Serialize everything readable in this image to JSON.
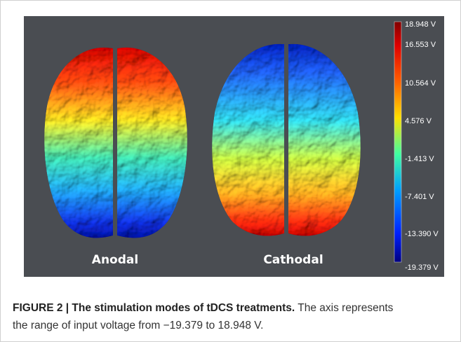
{
  "figure": {
    "labels": [
      "Anodal",
      "Cathodal"
    ],
    "colorbar_ticks": [
      "18.948 V",
      "16.553 V",
      "10.564 V",
      "4.576 V",
      "-1.413 V",
      "-7.401 V",
      "-13.390 V",
      "-19.379 V"
    ]
  },
  "caption": {
    "label": "FIGURE 2 | The stimulation modes of tDCS treatments.",
    "text": "The axis represents the range of input voltage from −19.379 to 18.948 V."
  }
}
